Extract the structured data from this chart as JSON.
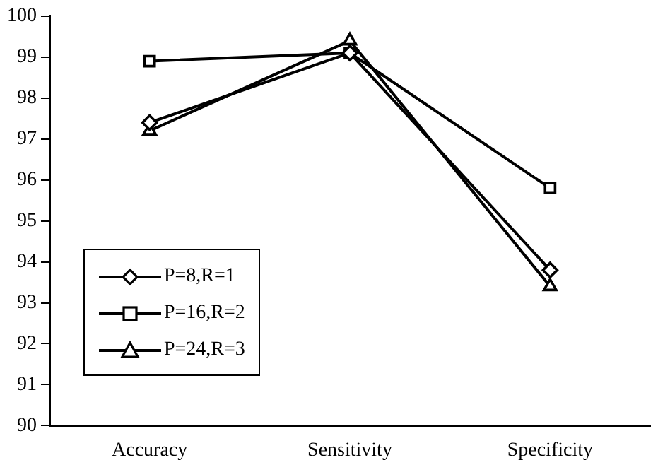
{
  "chart_data": {
    "type": "line",
    "categories": [
      "Accuracy",
      "Sensitivity",
      "Specificity"
    ],
    "series": [
      {
        "name": "P=8,R=1",
        "color": "#000000",
        "marker": "diamond",
        "values": [
          97.4,
          99.1,
          93.8
        ]
      },
      {
        "name": "P=16,R=2",
        "color": "#000000",
        "marker": "square",
        "values": [
          98.9,
          99.1,
          95.8
        ]
      },
      {
        "name": "P=24,R=3",
        "color": "#000000",
        "marker": "triangle",
        "values": [
          97.2,
          99.4,
          93.4
        ]
      }
    ],
    "ylim": [
      90,
      100
    ],
    "yticks": [
      90,
      91,
      92,
      93,
      94,
      95,
      96,
      97,
      98,
      99,
      100
    ],
    "grid": false,
    "legend": "bottom left",
    "line_style": "solid"
  }
}
